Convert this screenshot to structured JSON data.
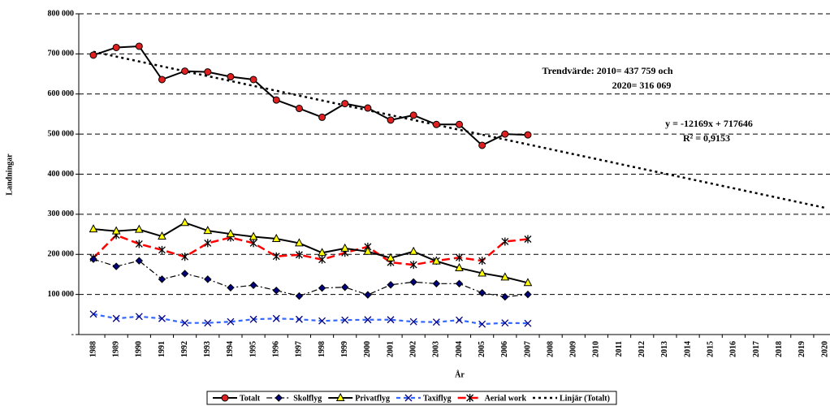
{
  "chart_data": {
    "type": "line",
    "y_label": "Landningar",
    "x_label": "År",
    "annotations": [
      "Trendvärde: 2010= 437 759 och",
      "2020= 316 069",
      "y = -12169x + 717646",
      "R² = 0,9153"
    ],
    "categories": [
      "1988",
      "1989",
      "1990",
      "1991",
      "1992",
      "1993",
      "1994",
      "1995",
      "1996",
      "1997",
      "1998",
      "1999",
      "2000",
      "2001",
      "2002",
      "2003",
      "2004",
      "2005",
      "2006",
      "2007",
      "2008",
      "2009",
      "2010",
      "2011",
      "2012",
      "2013",
      "2014",
      "2015",
      "2016",
      "2017",
      "2018",
      "2019",
      "2020"
    ],
    "ylim": [
      0,
      800000
    ],
    "yticks": [
      {
        "value": 0,
        "label": "-"
      },
      {
        "value": 100000,
        "label": "100 000"
      },
      {
        "value": 200000,
        "label": "200 000"
      },
      {
        "value": 300000,
        "label": "300 000"
      },
      {
        "value": 400000,
        "label": "400 000"
      },
      {
        "value": 500000,
        "label": "500 000"
      },
      {
        "value": 600000,
        "label": "600 000"
      },
      {
        "value": 700000,
        "label": "700 000"
      },
      {
        "value": 800000,
        "label": "800 000"
      }
    ],
    "grid": true,
    "legend": "bottom",
    "series": [
      {
        "name": "Totalt",
        "color": "#000000",
        "marker": "circle",
        "marker_color": "#e02020",
        "dash": "solid",
        "values": [
          697000,
          716000,
          719000,
          636000,
          657000,
          655000,
          643000,
          636000,
          585000,
          564000,
          542000,
          576000,
          565000,
          535000,
          547000,
          524000,
          524000,
          472000,
          500000,
          498000,
          null,
          null,
          null,
          null,
          null,
          null,
          null,
          null,
          null,
          null,
          null,
          null,
          null
        ]
      },
      {
        "name": "Skolflyg",
        "color": "#000000",
        "marker": "diamond",
        "marker_color": "#000080",
        "dash": "dashdot",
        "values": [
          188000,
          170000,
          184000,
          138000,
          152000,
          138000,
          117000,
          123000,
          110000,
          96000,
          116000,
          118000,
          99000,
          124000,
          131000,
          127000,
          127000,
          104000,
          94000,
          100000,
          null,
          null,
          null,
          null,
          null,
          null,
          null,
          null,
          null,
          null,
          null,
          null,
          null
        ]
      },
      {
        "name": "Privatflyg",
        "color": "#000000",
        "marker": "triangle",
        "marker_color": "#ffff00",
        "dash": "solid",
        "values": [
          263000,
          258000,
          262000,
          245000,
          279000,
          259000,
          251000,
          244000,
          239000,
          228000,
          204000,
          215000,
          207000,
          191000,
          207000,
          183000,
          166000,
          153000,
          143000,
          129000,
          null,
          null,
          null,
          null,
          null,
          null,
          null,
          null,
          null,
          null,
          null,
          null,
          null
        ]
      },
      {
        "name": "Taxiflyg",
        "color": "#3366ff",
        "marker": "x",
        "marker_color": "#000080",
        "dash": "dash",
        "values": [
          51000,
          40000,
          45000,
          40000,
          29000,
          29000,
          32000,
          38000,
          40000,
          38000,
          34000,
          36000,
          37000,
          37000,
          32000,
          31000,
          36000,
          26000,
          29000,
          28000,
          null,
          null,
          null,
          null,
          null,
          null,
          null,
          null,
          null,
          null,
          null,
          null,
          null
        ]
      },
      {
        "name": "Aerial work",
        "color": "#ff0000",
        "marker": "star",
        "marker_color": "#000000",
        "dash": "longdash",
        "values": [
          191000,
          248000,
          226000,
          211000,
          194000,
          228000,
          242000,
          228000,
          195000,
          199000,
          187000,
          204000,
          219000,
          180000,
          174000,
          184000,
          192000,
          184000,
          232000,
          238000,
          null,
          null,
          null,
          null,
          null,
          null,
          null,
          null,
          null,
          null,
          null,
          null,
          null
        ]
      },
      {
        "name": "Linjär (Totalt)",
        "color": "#000000",
        "marker": "none",
        "marker_color": "#000000",
        "dash": "dot",
        "values": [
          705477,
          693308,
          681139,
          668970,
          656801,
          644632,
          632463,
          620294,
          608125,
          595956,
          583787,
          571618,
          559449,
          547280,
          535111,
          522942,
          510773,
          498604,
          486435,
          474266,
          462097,
          449928,
          437759,
          425590,
          413421,
          401252,
          389083,
          376914,
          364745,
          352576,
          340407,
          328238,
          316069
        ]
      }
    ]
  }
}
